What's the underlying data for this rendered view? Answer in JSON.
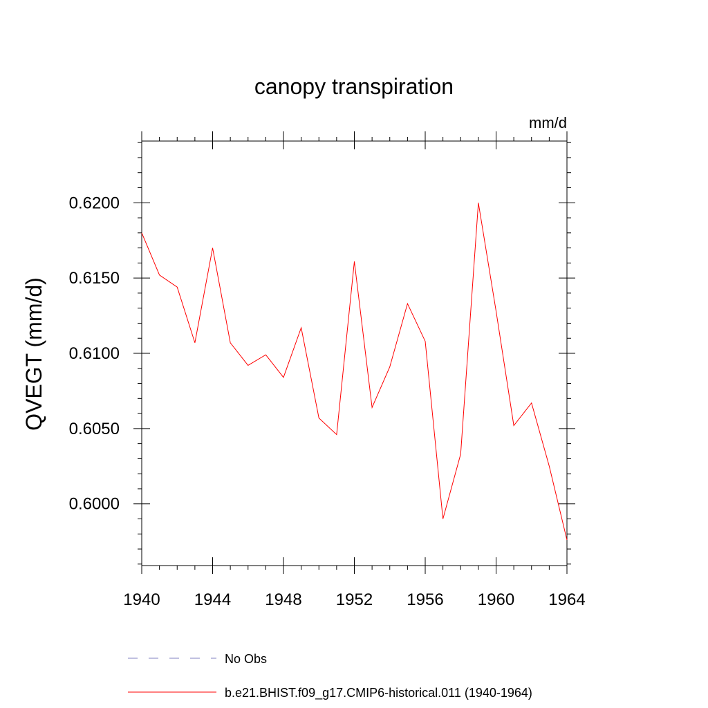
{
  "chart_data": {
    "type": "line",
    "title": "canopy transpiration",
    "units_label": "mm/d",
    "xlabel": "",
    "ylabel": "QVEGT  (mm/d)",
    "xlim": [
      1940,
      1964
    ],
    "ylim": [
      0.5959,
      0.6241
    ],
    "x_ticks": [
      1940,
      1944,
      1948,
      1952,
      1956,
      1960,
      1964
    ],
    "x_tick_labels": [
      "1940",
      "1944",
      "1948",
      "1952",
      "1956",
      "1960",
      "1964"
    ],
    "y_ticks": [
      0.6,
      0.605,
      0.61,
      0.615,
      0.62
    ],
    "y_tick_labels": [
      "0.6000",
      "0.6050",
      "0.6100",
      "0.6150",
      "0.6200"
    ],
    "grid": false,
    "legend_position": "bottom",
    "series": [
      {
        "name": "b.e21.BHIST.f09_g17.CMIP6-historical.011 (1940-1964)",
        "color": "#ff0000",
        "style": "solid",
        "x": [
          1940,
          1941,
          1942,
          1943,
          1944,
          1945,
          1946,
          1947,
          1948,
          1949,
          1950,
          1951,
          1952,
          1953,
          1954,
          1955,
          1956,
          1957,
          1958,
          1959,
          1960,
          1961,
          1962,
          1963,
          1964
        ],
        "y": [
          0.618,
          0.6152,
          0.6144,
          0.6107,
          0.617,
          0.6107,
          0.6092,
          0.6099,
          0.6084,
          0.6117,
          0.6057,
          0.6046,
          0.6161,
          0.6064,
          0.6091,
          0.6133,
          0.6108,
          0.599,
          0.6033,
          0.62,
          0.6128,
          0.6052,
          0.6067,
          0.6025,
          0.5976
        ]
      }
    ],
    "legend": [
      {
        "label": "No Obs",
        "color": "#8080c0",
        "style": "dashed"
      },
      {
        "label": "b.e21.BHIST.f09_g17.CMIP6-historical.011 (1940-1964)",
        "color": "#ff0000",
        "style": "solid"
      }
    ]
  }
}
